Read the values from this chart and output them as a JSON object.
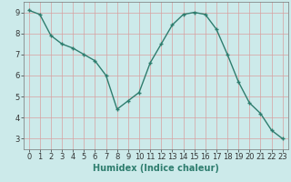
{
  "x": [
    0,
    1,
    2,
    3,
    4,
    5,
    6,
    7,
    8,
    9,
    10,
    11,
    12,
    13,
    14,
    15,
    16,
    17,
    18,
    19,
    20,
    21,
    22,
    23
  ],
  "y": [
    9.1,
    8.9,
    7.9,
    7.5,
    7.3,
    7.0,
    6.7,
    6.0,
    4.4,
    4.8,
    5.2,
    6.6,
    7.5,
    8.4,
    8.9,
    9.0,
    8.9,
    8.2,
    7.0,
    5.7,
    4.7,
    4.2,
    3.4,
    3.0
  ],
  "line_color": "#2e7d6e",
  "marker": "+",
  "marker_size": 3,
  "marker_color": "#2e7d6e",
  "bg_color": "#cceaea",
  "grid_color": "#b8d8d8",
  "xlabel": "Humidex (Indice chaleur)",
  "xlim": [
    -0.5,
    23.5
  ],
  "ylim": [
    2.5,
    9.5
  ],
  "yticks": [
    3,
    4,
    5,
    6,
    7,
    8,
    9
  ],
  "xticks": [
    0,
    1,
    2,
    3,
    4,
    5,
    6,
    7,
    8,
    9,
    10,
    11,
    12,
    13,
    14,
    15,
    16,
    17,
    18,
    19,
    20,
    21,
    22,
    23
  ],
  "xlabel_fontsize": 7,
  "tick_fontsize": 6,
  "line_width": 1.0
}
